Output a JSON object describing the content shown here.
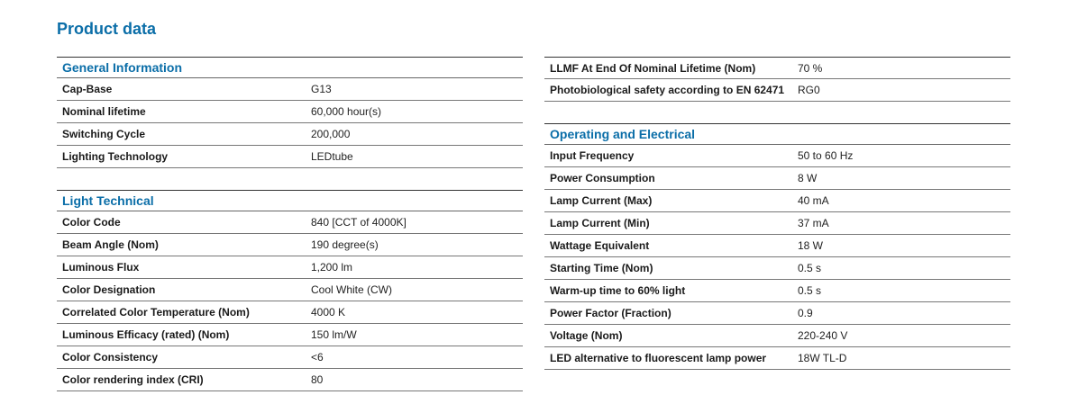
{
  "title": "Product data",
  "left": {
    "general": {
      "heading": "General Information",
      "rows": [
        {
          "label": "Cap-Base",
          "value": "G13"
        },
        {
          "label": "Nominal lifetime",
          "value": "60,000 hour(s)"
        },
        {
          "label": "Switching Cycle",
          "value": "200,000"
        },
        {
          "label": "Lighting Technology",
          "value": "LEDtube"
        }
      ]
    },
    "light": {
      "heading": "Light Technical",
      "rows": [
        {
          "label": "Color Code",
          "value": "840 [CCT of 4000K]"
        },
        {
          "label": "Beam Angle (Nom)",
          "value": "190 degree(s)"
        },
        {
          "label": "Luminous Flux",
          "value": "1,200 lm"
        },
        {
          "label": "Color Designation",
          "value": "Cool White (CW)"
        },
        {
          "label": "Correlated Color Temperature (Nom)",
          "value": "4000 K"
        },
        {
          "label": "Luminous Efficacy (rated) (Nom)",
          "value": "150 lm/W"
        },
        {
          "label": "Color Consistency",
          "value": "<6"
        },
        {
          "label": "Color rendering index (CRI)",
          "value": "80"
        }
      ]
    }
  },
  "right": {
    "top": {
      "rows": [
        {
          "label": "LLMF At End Of Nominal Lifetime (Nom)",
          "value": "70 %"
        },
        {
          "label": "Photobiological safety according to EN 62471",
          "value": "RG0"
        }
      ]
    },
    "electrical": {
      "heading": "Operating and Electrical",
      "rows": [
        {
          "label": "Input Frequency",
          "value": "50 to 60 Hz"
        },
        {
          "label": "Power Consumption",
          "value": "8 W"
        },
        {
          "label": "Lamp Current (Max)",
          "value": "40 mA"
        },
        {
          "label": "Lamp Current (Min)",
          "value": "37 mA"
        },
        {
          "label": "Wattage Equivalent",
          "value": "18 W"
        },
        {
          "label": "Starting Time (Nom)",
          "value": "0.5 s"
        },
        {
          "label": "Warm-up time to 60% light",
          "value": "0.5 s"
        },
        {
          "label": "Power Factor (Fraction)",
          "value": "0.9"
        },
        {
          "label": "Voltage (Nom)",
          "value": "220-240 V"
        },
        {
          "label": "LED alternative to fluorescent lamp power",
          "value": "18W TL-D"
        }
      ]
    }
  }
}
